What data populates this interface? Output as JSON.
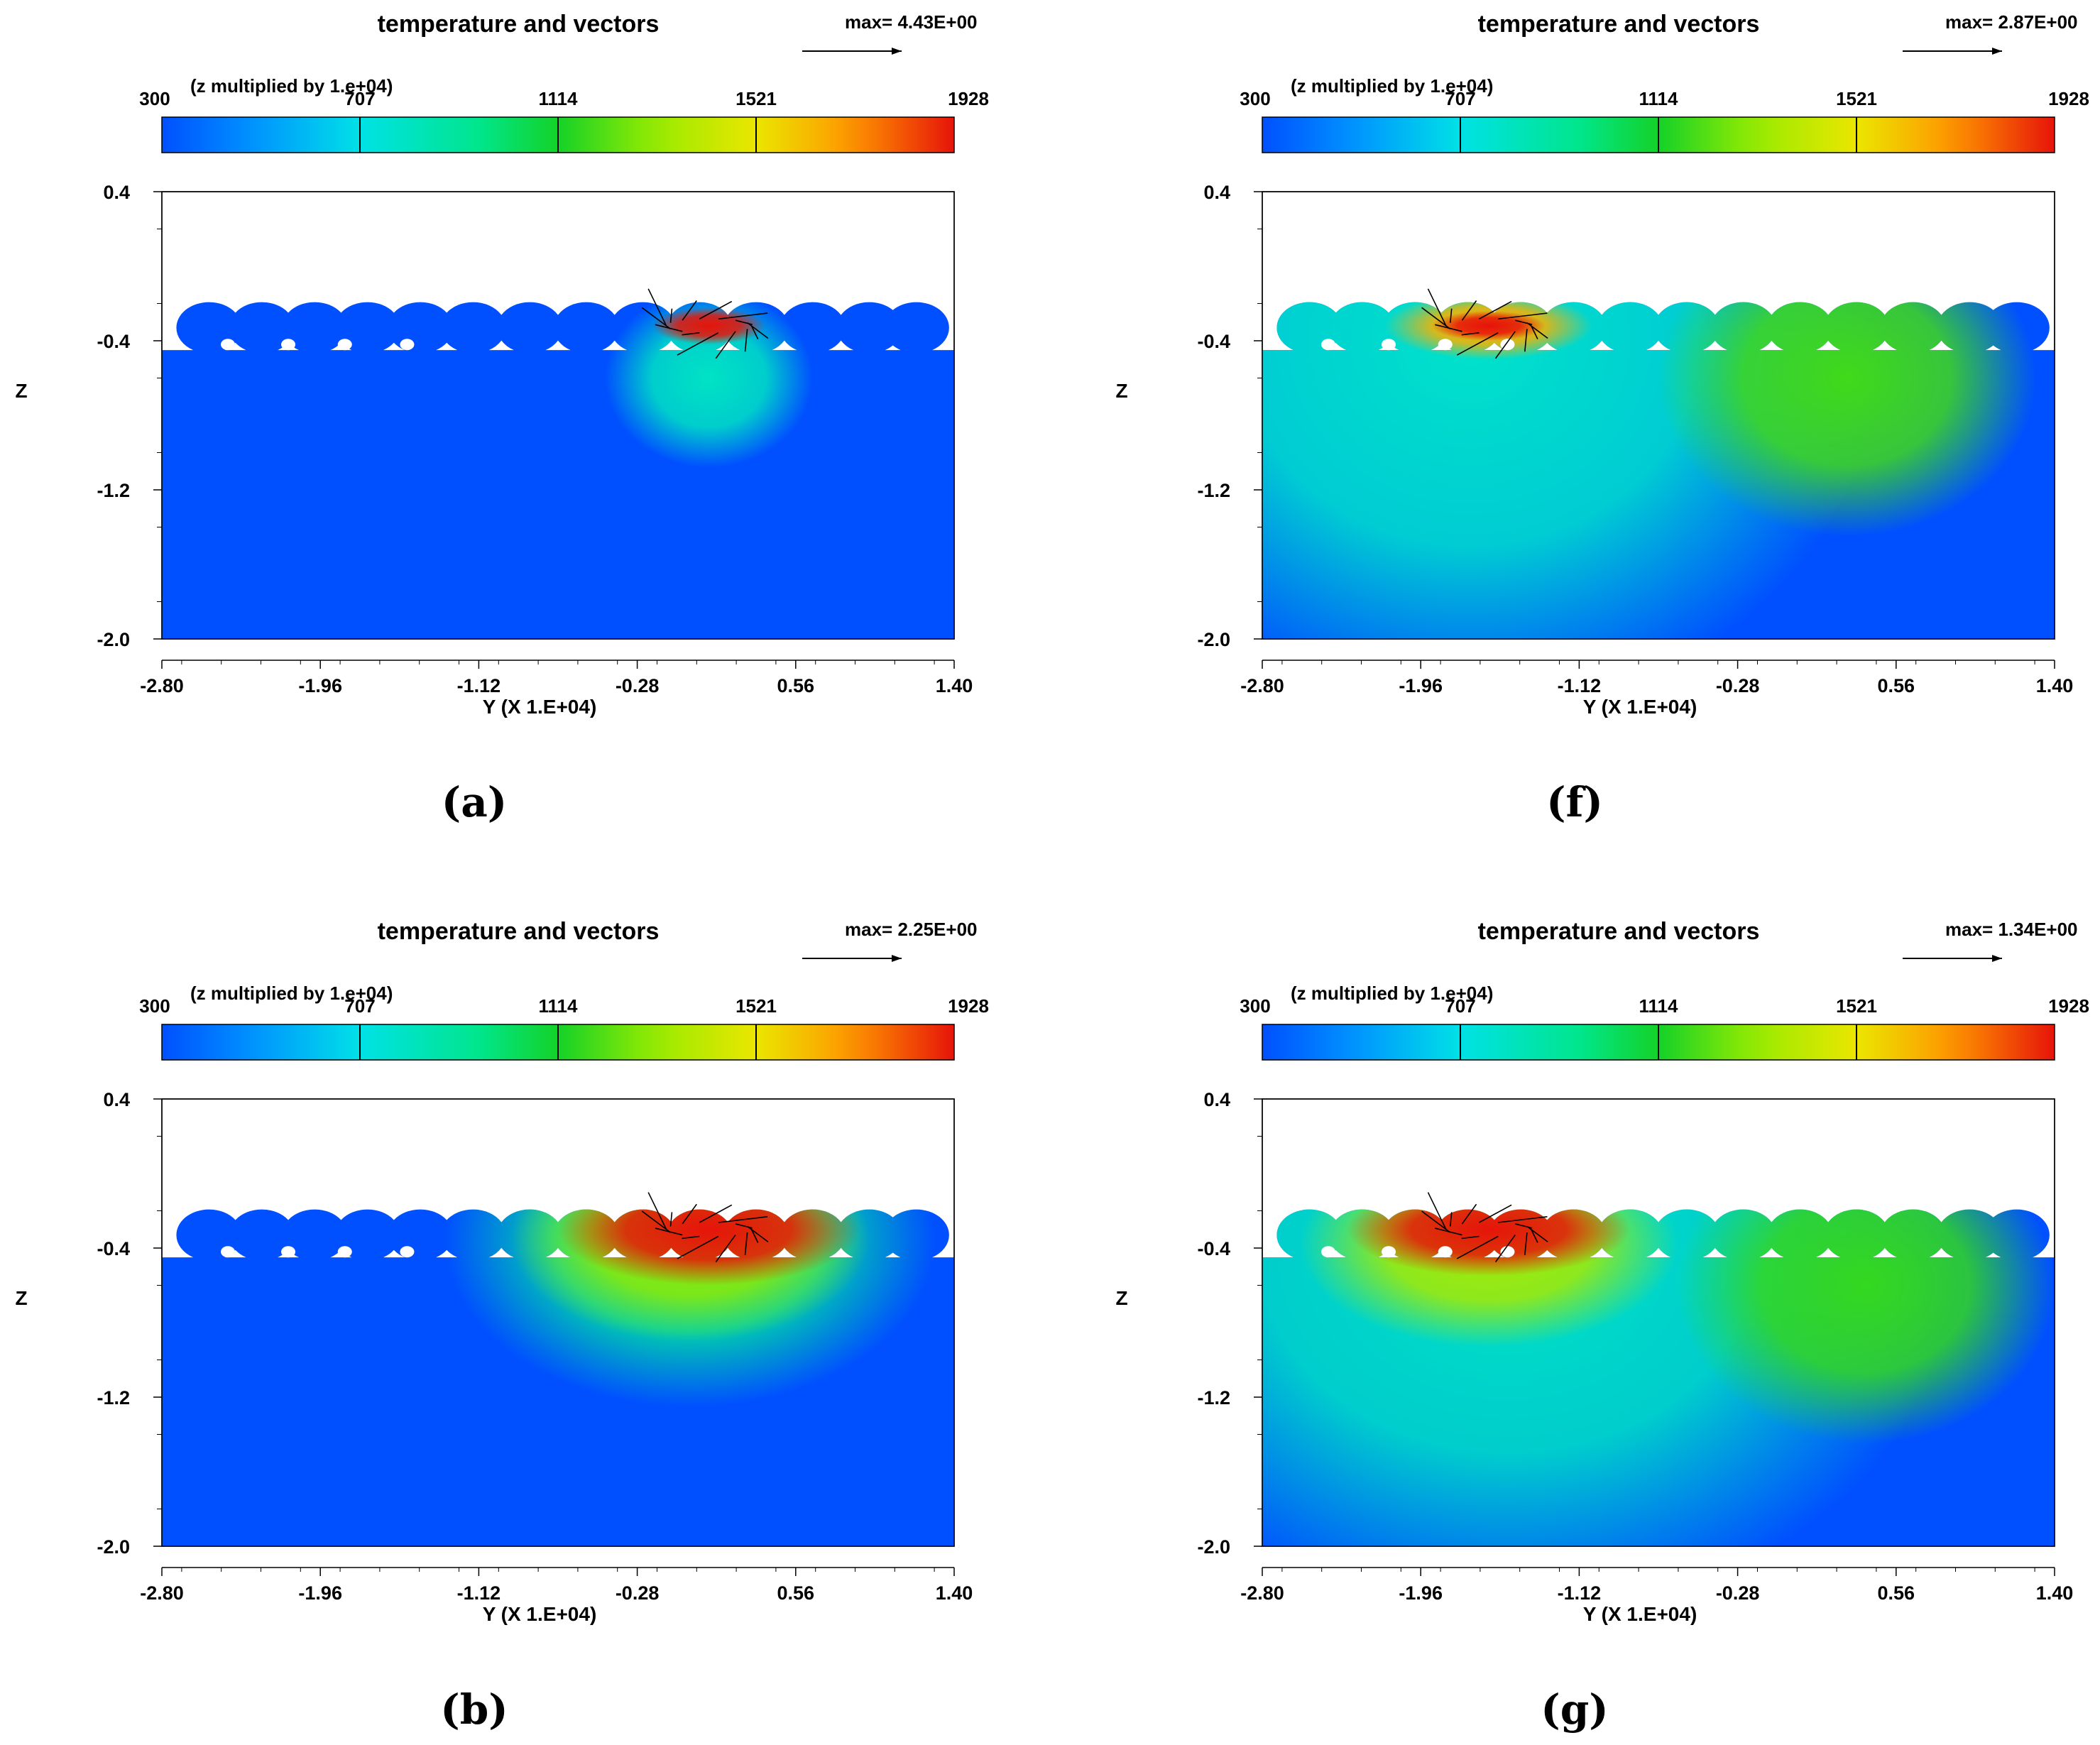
{
  "chart_data": [
    {
      "type": "heatmap",
      "panel": "(a)",
      "title": "temperature and vectors",
      "vector_max": "max= 4.43E+00",
      "colorbar_note": "(z multiplied by 1.e+04)",
      "colorbar_ticks": [
        "300",
        "707",
        "1114",
        "1521",
        "1928"
      ],
      "colorbar_range": [
        300,
        1928
      ],
      "xlabel": "Y  (X 1.E+04)",
      "ylabel": "Z",
      "xticks": [
        "-2.80",
        "-1.96",
        "-1.12",
        "-0.28",
        "0.56",
        "1.40"
      ],
      "yticks": [
        "0.4",
        "-0.4",
        "-1.2",
        "-2.0"
      ],
      "xlim": [
        -2.8,
        1.4
      ],
      "ylim": [
        -2.0,
        0.4
      ],
      "caption": "(a)",
      "hot_spots": [
        {
          "y": 0.1,
          "z": -0.6,
          "ry": 0.55,
          "rz": 0.48,
          "temperature": 800
        },
        {
          "y": 0.1,
          "z": -0.32,
          "ry": 0.3,
          "rz": 0.1,
          "temperature": 1928
        }
      ]
    },
    {
      "type": "heatmap",
      "panel": "(f)",
      "title": "temperature and vectors",
      "vector_max": "max= 2.87E+00",
      "colorbar_note": "(z multiplied by 1.e+04)",
      "colorbar_ticks": [
        "300",
        "707",
        "1114",
        "1521",
        "1928"
      ],
      "colorbar_range": [
        300,
        1928
      ],
      "xlabel": "Y  (X 1.E+04)",
      "ylabel": "Z",
      "xticks": [
        "-2.80",
        "-1.96",
        "-1.12",
        "-0.28",
        "0.56",
        "1.40"
      ],
      "yticks": [
        "0.4",
        "-0.4",
        "-1.2",
        "-2.0"
      ],
      "xlim": [
        -2.8,
        1.4
      ],
      "ylim": [
        -2.0,
        0.4
      ],
      "caption": "(f)",
      "hot_spots": [
        {
          "y": -1.7,
          "z": -0.4,
          "ry": 2.2,
          "rz": 2.0,
          "temperature": 780
        },
        {
          "y": 0.3,
          "z": -0.6,
          "ry": 1.0,
          "rz": 0.85,
          "temperature": 1180
        },
        {
          "y": -1.6,
          "z": -0.32,
          "ry": 0.55,
          "rz": 0.18,
          "temperature": 1650
        },
        {
          "y": -1.6,
          "z": -0.32,
          "ry": 0.3,
          "rz": 0.08,
          "temperature": 1928
        }
      ]
    },
    {
      "type": "heatmap",
      "panel": "(b)",
      "title": "temperature and vectors",
      "vector_max": "max= 2.25E+00",
      "colorbar_note": "(z multiplied by 1.e+04)",
      "colorbar_ticks": [
        "300",
        "707",
        "1114",
        "1521",
        "1928"
      ],
      "colorbar_range": [
        300,
        1928
      ],
      "xlabel": "Y  (X 1.E+04)",
      "ylabel": "Z",
      "xticks": [
        "-2.80",
        "-1.96",
        "-1.12",
        "-0.28",
        "0.56",
        "1.40"
      ],
      "yticks": [
        "0.4",
        "-0.4",
        "-1.2",
        "-2.0"
      ],
      "xlim": [
        -2.8,
        1.4
      ],
      "ylim": [
        -2.0,
        0.4
      ],
      "caption": "(b)",
      "hot_spots": [
        {
          "y": 0.0,
          "z": -0.35,
          "ry": 1.3,
          "rz": 0.9,
          "temperature": 900
        },
        {
          "y": 0.0,
          "z": -0.35,
          "ry": 0.95,
          "rz": 0.55,
          "temperature": 1300
        },
        {
          "y": 0.1,
          "z": -0.3,
          "ry": 0.8,
          "rz": 0.3,
          "temperature": 1928
        }
      ]
    },
    {
      "type": "heatmap",
      "panel": "(g)",
      "title": "temperature and vectors",
      "vector_max": "max= 1.34E+00",
      "colorbar_note": "(z multiplied by 1.e+04)",
      "colorbar_ticks": [
        "300",
        "707",
        "1114",
        "1521",
        "1928"
      ],
      "colorbar_range": [
        300,
        1928
      ],
      "xlabel": "Y  (X 1.E+04)",
      "ylabel": "Z",
      "xticks": [
        "-2.80",
        "-1.96",
        "-1.12",
        "-0.28",
        "0.56",
        "1.40"
      ],
      "yticks": [
        "0.4",
        "-0.4",
        "-1.2",
        "-2.0"
      ],
      "xlim": [
        -2.8,
        1.4
      ],
      "ylim": [
        -2.0,
        0.4
      ],
      "caption": "(g)",
      "hot_spots": [
        {
          "y": -1.5,
          "z": -0.4,
          "ry": 2.4,
          "rz": 2.0,
          "temperature": 800
        },
        {
          "y": 0.4,
          "z": -0.6,
          "ry": 1.0,
          "rz": 0.85,
          "temperature": 1160
        },
        {
          "y": -1.6,
          "z": -0.38,
          "ry": 1.0,
          "rz": 0.55,
          "temperature": 1350
        },
        {
          "y": -1.6,
          "z": -0.3,
          "ry": 0.75,
          "rz": 0.25,
          "temperature": 1928
        }
      ]
    }
  ]
}
